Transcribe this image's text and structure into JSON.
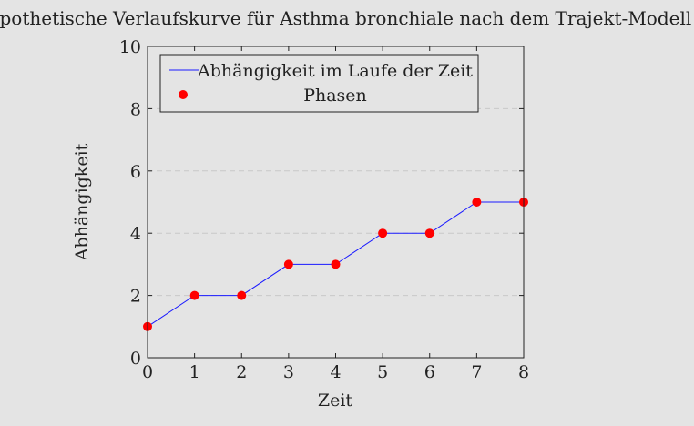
{
  "chart_data": {
    "type": "line",
    "title": "Hypothetische Verlaufskurve für Asthma bronchiale nach dem Trajekt-Modell",
    "xlabel": "Zeit",
    "ylabel": "Abhängigkeit",
    "xlim": [
      0,
      8
    ],
    "ylim": [
      0,
      10
    ],
    "xticks": [
      0,
      1,
      2,
      3,
      4,
      5,
      6,
      7,
      8
    ],
    "yticks": [
      0,
      2,
      4,
      6,
      8,
      10
    ],
    "grid": "horizontal dashed",
    "legend_position": "top-left",
    "series": [
      {
        "name": "Abhängigkeit im Laufe der Zeit",
        "kind": "line",
        "color": "#1a1aff",
        "x": [
          0,
          1,
          2,
          3,
          4,
          5,
          6,
          7,
          8
        ],
        "y": [
          1,
          2,
          2,
          3,
          3,
          4,
          4,
          5,
          5
        ]
      },
      {
        "name": "Phasen",
        "kind": "markers",
        "color": "#ff0000",
        "x": [
          0,
          1,
          2,
          3,
          4,
          5,
          6,
          7,
          8
        ],
        "y": [
          1,
          2,
          2,
          3,
          3,
          4,
          4,
          5,
          5
        ]
      }
    ]
  }
}
